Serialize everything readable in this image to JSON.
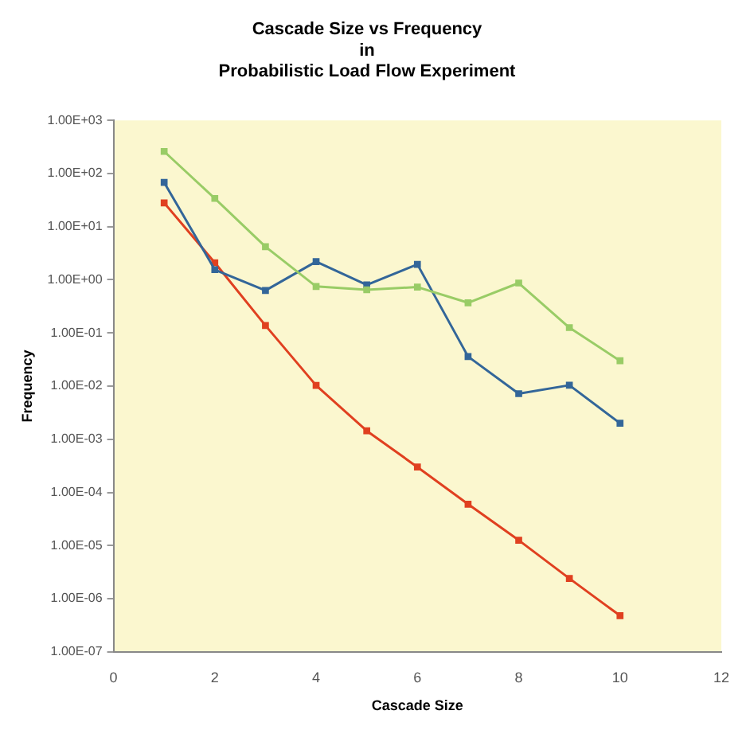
{
  "chart_data": {
    "type": "line",
    "title": "Cascade Size vs Frequency\nin\nProbabilistic Load Flow Experiment",
    "xlabel": "Cascade Size",
    "ylabel": "Frequency",
    "x": [
      1,
      2,
      3,
      4,
      5,
      6,
      7,
      8,
      9,
      10
    ],
    "series": [
      {
        "color": "#99cc66",
        "values": [
          260,
          34,
          4.2,
          0.75,
          0.65,
          0.73,
          0.37,
          0.87,
          0.126,
          0.03
        ]
      },
      {
        "color": "#336699",
        "values": [
          68,
          1.55,
          0.63,
          2.2,
          0.8,
          1.95,
          0.036,
          0.0072,
          0.0104,
          0.002
        ]
      },
      {
        "color": "#e04020",
        "values": [
          28,
          2.1,
          0.138,
          0.0103,
          0.00144,
          0.0003,
          6e-05,
          1.26e-05,
          2.4e-06,
          4.8e-07
        ]
      }
    ],
    "log": "y",
    "grid": false,
    "legend": false,
    "marker": "square",
    "line_style": "solid",
    "xlim": [
      0,
      12
    ],
    "xticks": [
      0,
      2,
      4,
      6,
      8,
      10,
      12
    ],
    "ylim": [
      1e-07,
      1000
    ],
    "yticks": [
      {
        "value": 1e-07,
        "label": "1.00E-07"
      },
      {
        "value": 1e-06,
        "label": "1.00E-06"
      },
      {
        "value": 1e-05,
        "label": "1.00E-05"
      },
      {
        "value": 0.0001,
        "label": "1.00E-04"
      },
      {
        "value": 0.001,
        "label": "1.00E-03"
      },
      {
        "value": 0.01,
        "label": "1.00E-02"
      },
      {
        "value": 0.1,
        "label": "1.00E-01"
      },
      {
        "value": 1,
        "label": "1.00E+00"
      },
      {
        "value": 10,
        "label": "1.00E+01"
      },
      {
        "value": 100,
        "label": "1.00E+02"
      },
      {
        "value": 1000,
        "label": "1.00E+03"
      }
    ]
  }
}
